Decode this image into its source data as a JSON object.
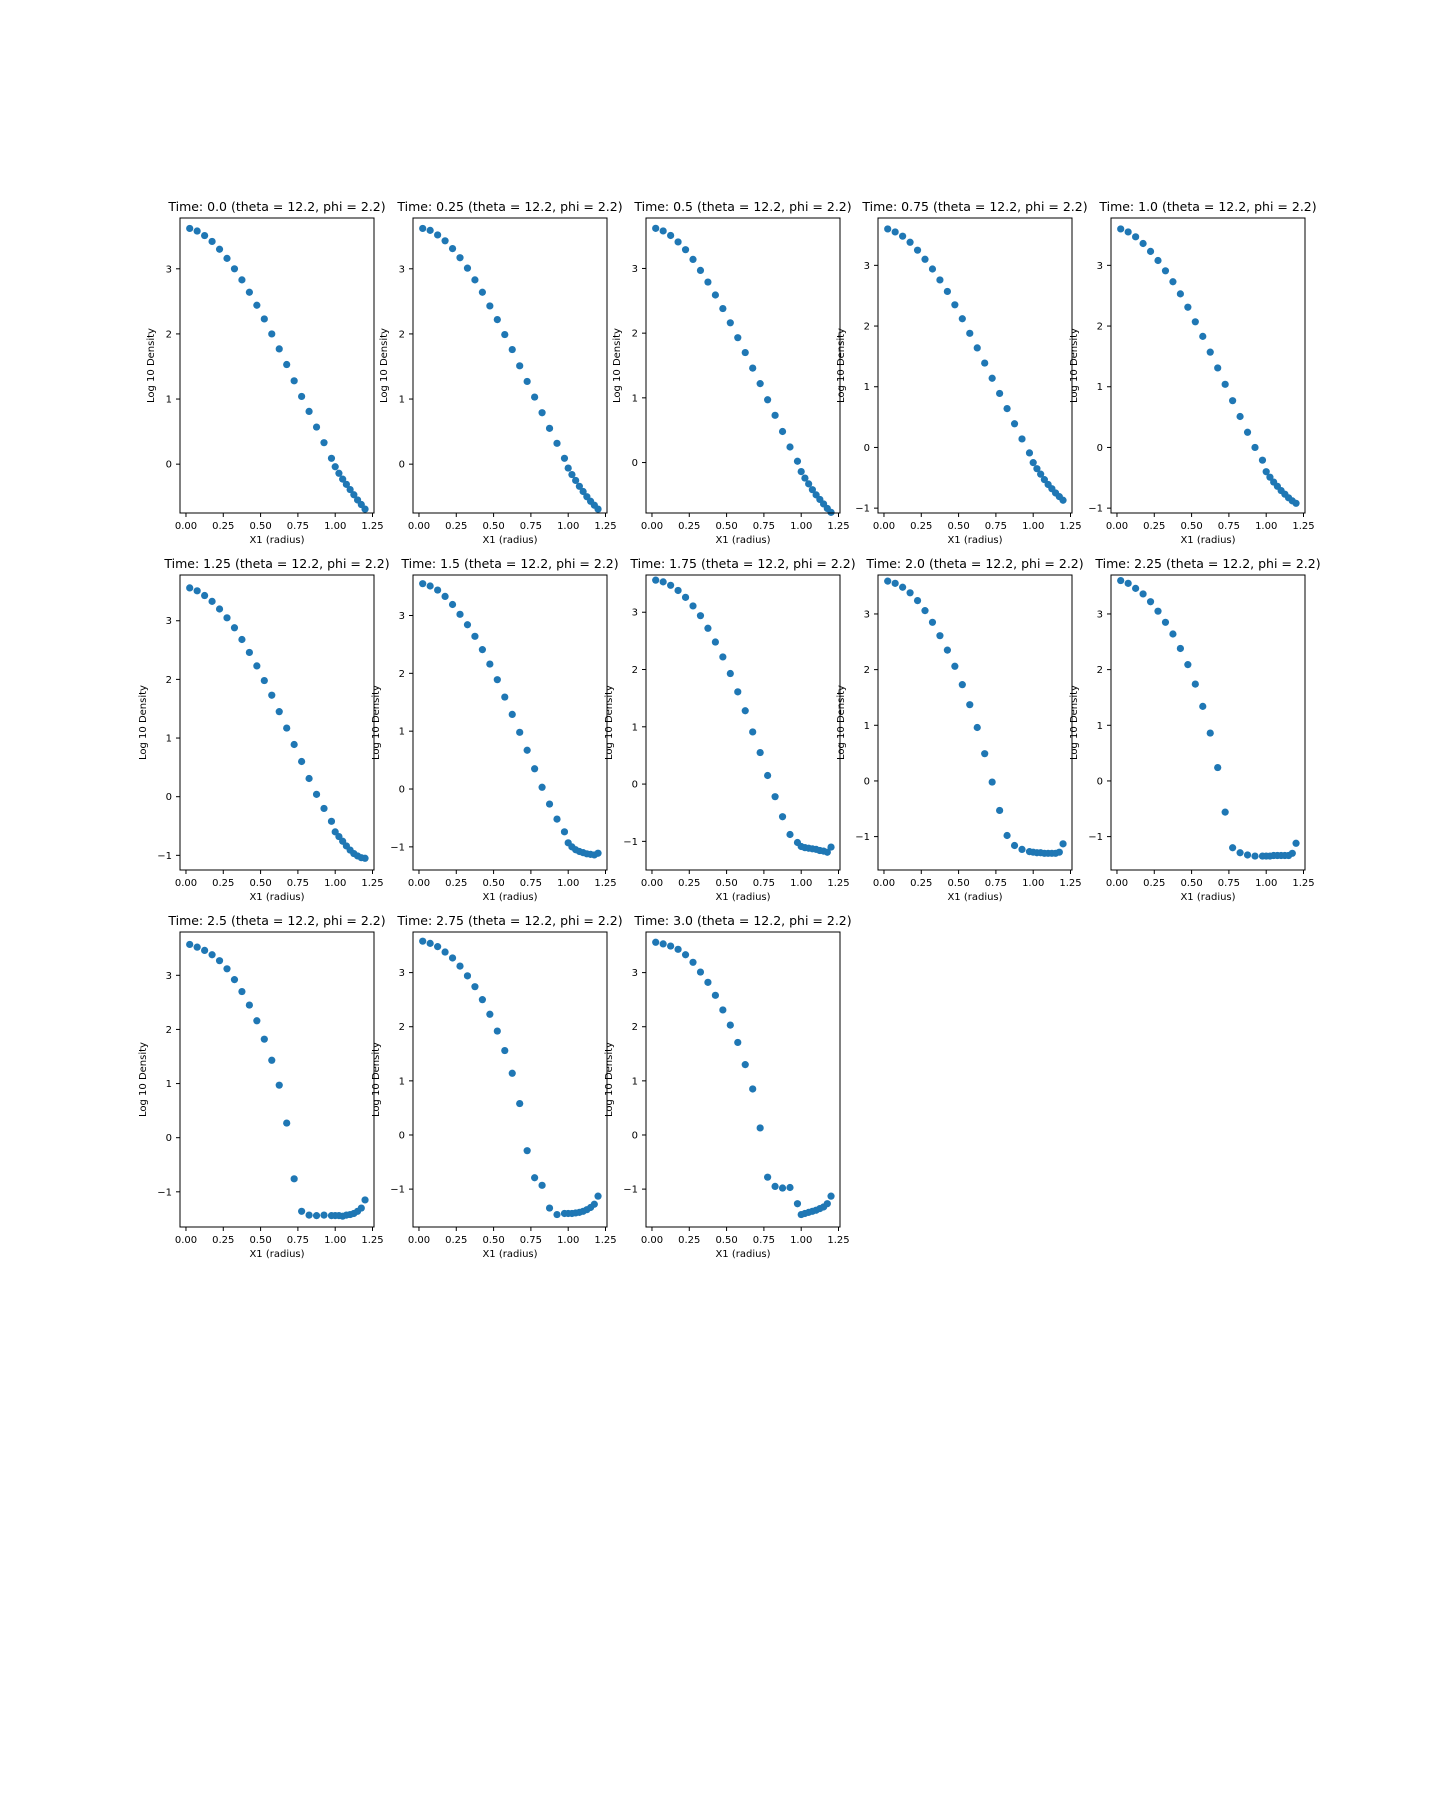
{
  "chart_data": [
    {
      "type": "scatter",
      "title": "Time: 0.0 (theta = 12.2, phi = 2.2)",
      "xlabel": "X1 (radius)",
      "ylabel": "Log 10 Density",
      "xlim": [
        -0.04,
        1.26
      ],
      "ylim": [
        -0.75,
        3.78
      ],
      "xticks": [
        "0.00",
        "0.25",
        "0.50",
        "0.75",
        "1.00",
        "1.25"
      ],
      "yticks": [
        "0",
        "1",
        "2",
        "3"
      ],
      "color": "#1f77b4",
      "x": [
        0.025,
        0.075,
        0.125,
        0.175,
        0.225,
        0.275,
        0.325,
        0.375,
        0.425,
        0.475,
        0.525,
        0.575,
        0.625,
        0.675,
        0.725,
        0.775,
        0.825,
        0.875,
        0.925,
        0.975,
        1.0,
        1.025,
        1.05,
        1.075,
        1.1,
        1.125,
        1.15,
        1.175,
        1.2
      ],
      "y": [
        3.62,
        3.58,
        3.51,
        3.42,
        3.3,
        3.16,
        3.0,
        2.83,
        2.64,
        2.44,
        2.23,
        2.0,
        1.77,
        1.53,
        1.28,
        1.04,
        0.81,
        0.57,
        0.33,
        0.09,
        -0.04,
        -0.14,
        -0.23,
        -0.31,
        -0.39,
        -0.47,
        -0.55,
        -0.62,
        -0.69
      ]
    },
    {
      "type": "scatter",
      "title": "Time: 0.25 (theta = 12.2, phi = 2.2)",
      "xlabel": "X1 (radius)",
      "ylabel": "Log 10 Density",
      "xlim": [
        -0.04,
        1.26
      ],
      "ylim": [
        -0.75,
        3.78
      ],
      "xticks": [
        "0.00",
        "0.25",
        "0.50",
        "0.75",
        "1.00",
        "1.25"
      ],
      "yticks": [
        "0",
        "1",
        "2",
        "3"
      ],
      "color": "#1f77b4",
      "x": [
        0.025,
        0.075,
        0.125,
        0.175,
        0.225,
        0.275,
        0.325,
        0.375,
        0.425,
        0.475,
        0.525,
        0.575,
        0.625,
        0.675,
        0.725,
        0.775,
        0.825,
        0.875,
        0.925,
        0.975,
        1.0,
        1.025,
        1.05,
        1.075,
        1.1,
        1.125,
        1.15,
        1.175,
        1.2
      ],
      "y": [
        3.62,
        3.59,
        3.52,
        3.43,
        3.31,
        3.17,
        3.01,
        2.83,
        2.64,
        2.43,
        2.22,
        1.99,
        1.76,
        1.51,
        1.27,
        1.03,
        0.79,
        0.55,
        0.32,
        0.09,
        -0.06,
        -0.16,
        -0.25,
        -0.34,
        -0.42,
        -0.5,
        -0.57,
        -0.63,
        -0.69
      ]
    },
    {
      "type": "scatter",
      "title": "Time: 0.5 (theta = 12.2, phi = 2.2)",
      "xlabel": "X1 (radius)",
      "ylabel": "Log 10 Density",
      "xlim": [
        -0.04,
        1.26
      ],
      "ylim": [
        -0.78,
        3.78
      ],
      "xticks": [
        "0.00",
        "0.25",
        "0.50",
        "0.75",
        "1.00",
        "1.25"
      ],
      "yticks": [
        "0",
        "1",
        "2",
        "3"
      ],
      "color": "#1f77b4",
      "x": [
        0.025,
        0.075,
        0.125,
        0.175,
        0.225,
        0.275,
        0.325,
        0.375,
        0.425,
        0.475,
        0.525,
        0.575,
        0.625,
        0.675,
        0.725,
        0.775,
        0.825,
        0.875,
        0.925,
        0.975,
        1.0,
        1.025,
        1.05,
        1.075,
        1.1,
        1.125,
        1.15,
        1.175,
        1.2
      ],
      "y": [
        3.62,
        3.58,
        3.51,
        3.41,
        3.29,
        3.14,
        2.97,
        2.79,
        2.59,
        2.38,
        2.16,
        1.93,
        1.7,
        1.46,
        1.22,
        0.97,
        0.73,
        0.48,
        0.24,
        0.02,
        -0.14,
        -0.24,
        -0.33,
        -0.42,
        -0.5,
        -0.57,
        -0.64,
        -0.71,
        -0.77
      ]
    },
    {
      "type": "scatter",
      "title": "Time: 0.75 (theta = 12.2, phi = 2.2)",
      "xlabel": "X1 (radius)",
      "ylabel": "Log 10 Density",
      "xlim": [
        -0.04,
        1.26
      ],
      "ylim": [
        -1.08,
        3.78
      ],
      "xticks": [
        "0.00",
        "0.25",
        "0.50",
        "0.75",
        "1.00",
        "1.25"
      ],
      "yticks": [
        "−1",
        "0",
        "1",
        "2",
        "3"
      ],
      "color": "#1f77b4",
      "x": [
        0.025,
        0.075,
        0.125,
        0.175,
        0.225,
        0.275,
        0.325,
        0.375,
        0.425,
        0.475,
        0.525,
        0.575,
        0.625,
        0.675,
        0.725,
        0.775,
        0.825,
        0.875,
        0.925,
        0.975,
        1.0,
        1.025,
        1.05,
        1.075,
        1.1,
        1.125,
        1.15,
        1.175,
        1.2
      ],
      "y": [
        3.6,
        3.55,
        3.48,
        3.38,
        3.25,
        3.1,
        2.94,
        2.76,
        2.57,
        2.35,
        2.12,
        1.88,
        1.64,
        1.39,
        1.14,
        0.89,
        0.64,
        0.39,
        0.14,
        -0.09,
        -0.25,
        -0.35,
        -0.44,
        -0.53,
        -0.61,
        -0.68,
        -0.75,
        -0.81,
        -0.87
      ]
    },
    {
      "type": "scatter",
      "title": "Time: 1.0 (theta = 12.2, phi = 2.2)",
      "xlabel": "X1 (radius)",
      "ylabel": "Log 10 Density",
      "xlim": [
        -0.04,
        1.26
      ],
      "ylim": [
        -1.08,
        3.78
      ],
      "xticks": [
        "0.00",
        "0.25",
        "0.50",
        "0.75",
        "1.00",
        "1.25"
      ],
      "yticks": [
        "−1",
        "0",
        "1",
        "2",
        "3"
      ],
      "color": "#1f77b4",
      "x": [
        0.025,
        0.075,
        0.125,
        0.175,
        0.225,
        0.275,
        0.325,
        0.375,
        0.425,
        0.475,
        0.525,
        0.575,
        0.625,
        0.675,
        0.725,
        0.775,
        0.825,
        0.875,
        0.925,
        0.975,
        1.0,
        1.025,
        1.05,
        1.075,
        1.1,
        1.125,
        1.15,
        1.175,
        1.2
      ],
      "y": [
        3.6,
        3.55,
        3.47,
        3.36,
        3.23,
        3.08,
        2.91,
        2.73,
        2.53,
        2.31,
        2.07,
        1.83,
        1.57,
        1.31,
        1.04,
        0.77,
        0.51,
        0.25,
        0.0,
        -0.21,
        -0.4,
        -0.49,
        -0.57,
        -0.64,
        -0.71,
        -0.77,
        -0.83,
        -0.88,
        -0.92
      ]
    },
    {
      "type": "scatter",
      "title": "Time: 1.25 (theta = 12.2, phi = 2.2)",
      "xlabel": "X1 (radius)",
      "ylabel": "Log 10 Density",
      "xlim": [
        -0.04,
        1.26
      ],
      "ylim": [
        -1.25,
        3.78
      ],
      "xticks": [
        "0.00",
        "0.25",
        "0.50",
        "0.75",
        "1.00",
        "1.25"
      ],
      "yticks": [
        "−1",
        "0",
        "1",
        "2",
        "3"
      ],
      "color": "#1f77b4",
      "x": [
        0.025,
        0.075,
        0.125,
        0.175,
        0.225,
        0.275,
        0.325,
        0.375,
        0.425,
        0.475,
        0.525,
        0.575,
        0.625,
        0.675,
        0.725,
        0.775,
        0.825,
        0.875,
        0.925,
        0.975,
        1.0,
        1.025,
        1.05,
        1.075,
        1.1,
        1.125,
        1.15,
        1.175,
        1.2
      ],
      "y": [
        3.56,
        3.51,
        3.43,
        3.33,
        3.2,
        3.05,
        2.88,
        2.68,
        2.46,
        2.23,
        1.98,
        1.73,
        1.45,
        1.17,
        0.89,
        0.6,
        0.31,
        0.04,
        -0.2,
        -0.42,
        -0.6,
        -0.68,
        -0.76,
        -0.84,
        -0.91,
        -0.97,
        -1.01,
        -1.04,
        -1.05
      ]
    },
    {
      "type": "scatter",
      "title": "Time: 1.5 (theta = 12.2, phi = 2.2)",
      "xlabel": "X1 (radius)",
      "ylabel": "Log 10 Density",
      "xlim": [
        -0.04,
        1.26
      ],
      "ylim": [
        -1.4,
        3.7
      ],
      "xticks": [
        "0.00",
        "0.25",
        "0.50",
        "0.75",
        "1.00",
        "1.25"
      ],
      "yticks": [
        "−1",
        "0",
        "1",
        "2",
        "3"
      ],
      "color": "#1f77b4",
      "x": [
        0.025,
        0.075,
        0.125,
        0.175,
        0.225,
        0.275,
        0.325,
        0.375,
        0.425,
        0.475,
        0.525,
        0.575,
        0.625,
        0.675,
        0.725,
        0.775,
        0.825,
        0.875,
        0.925,
        0.975,
        1.0,
        1.025,
        1.05,
        1.075,
        1.1,
        1.125,
        1.15,
        1.175,
        1.2
      ],
      "y": [
        3.55,
        3.51,
        3.44,
        3.33,
        3.19,
        3.02,
        2.84,
        2.64,
        2.41,
        2.16,
        1.89,
        1.59,
        1.29,
        0.98,
        0.67,
        0.35,
        0.03,
        -0.26,
        -0.52,
        -0.74,
        -0.93,
        -1.0,
        -1.05,
        -1.08,
        -1.1,
        -1.12,
        -1.13,
        -1.14,
        -1.11
      ]
    },
    {
      "type": "scatter",
      "title": "Time: 1.75 (theta = 12.2, phi = 2.2)",
      "xlabel": "X1 (radius)",
      "ylabel": "Log 10 Density",
      "xlim": [
        -0.04,
        1.26
      ],
      "ylim": [
        -1.5,
        3.65
      ],
      "xticks": [
        "0.00",
        "0.25",
        "0.50",
        "0.75",
        "1.00",
        "1.25"
      ],
      "yticks": [
        "−1",
        "0",
        "1",
        "2",
        "3"
      ],
      "color": "#1f77b4",
      "x": [
        0.025,
        0.075,
        0.125,
        0.175,
        0.225,
        0.275,
        0.325,
        0.375,
        0.425,
        0.475,
        0.525,
        0.575,
        0.625,
        0.675,
        0.725,
        0.775,
        0.825,
        0.875,
        0.925,
        0.975,
        1.0,
        1.025,
        1.05,
        1.075,
        1.1,
        1.125,
        1.15,
        1.175,
        1.2
      ],
      "y": [
        3.56,
        3.53,
        3.47,
        3.38,
        3.26,
        3.11,
        2.94,
        2.72,
        2.48,
        2.22,
        1.93,
        1.61,
        1.28,
        0.91,
        0.55,
        0.15,
        -0.22,
        -0.57,
        -0.88,
        -1.02,
        -1.09,
        -1.11,
        -1.12,
        -1.13,
        -1.14,
        -1.16,
        -1.17,
        -1.19,
        -1.1
      ]
    },
    {
      "type": "scatter",
      "title": "Time: 2.0 (theta = 12.2, phi = 2.2)",
      "xlabel": "X1 (radius)",
      "ylabel": "Log 10 Density",
      "xlim": [
        -0.04,
        1.26
      ],
      "ylim": [
        -1.6,
        3.7
      ],
      "xticks": [
        "0.00",
        "0.25",
        "0.50",
        "0.75",
        "1.00",
        "1.25"
      ],
      "yticks": [
        "−1",
        "0",
        "1",
        "2",
        "3"
      ],
      "color": "#1f77b4",
      "x": [
        0.025,
        0.075,
        0.125,
        0.175,
        0.225,
        0.275,
        0.325,
        0.375,
        0.425,
        0.475,
        0.525,
        0.575,
        0.625,
        0.675,
        0.725,
        0.775,
        0.825,
        0.875,
        0.925,
        0.975,
        1.0,
        1.025,
        1.05,
        1.075,
        1.1,
        1.125,
        1.15,
        1.175,
        1.2
      ],
      "y": [
        3.59,
        3.55,
        3.48,
        3.38,
        3.24,
        3.06,
        2.85,
        2.61,
        2.35,
        2.06,
        1.73,
        1.37,
        0.96,
        0.49,
        -0.02,
        -0.53,
        -0.98,
        -1.16,
        -1.23,
        -1.27,
        -1.28,
        -1.29,
        -1.29,
        -1.3,
        -1.3,
        -1.3,
        -1.3,
        -1.28,
        -1.13
      ]
    },
    {
      "type": "scatter",
      "title": "Time: 2.25 (theta = 12.2, phi = 2.2)",
      "xlabel": "X1 (radius)",
      "ylabel": "Log 10 Density",
      "xlim": [
        -0.04,
        1.26
      ],
      "ylim": [
        -1.6,
        3.7
      ],
      "xticks": [
        "0.00",
        "0.25",
        "0.50",
        "0.75",
        "1.00",
        "1.25"
      ],
      "yticks": [
        "−1",
        "0",
        "1",
        "2",
        "3"
      ],
      "color": "#1f77b4",
      "x": [
        0.025,
        0.075,
        0.125,
        0.175,
        0.225,
        0.275,
        0.325,
        0.375,
        0.425,
        0.475,
        0.525,
        0.575,
        0.625,
        0.675,
        0.725,
        0.775,
        0.825,
        0.875,
        0.925,
        0.975,
        1.0,
        1.025,
        1.05,
        1.075,
        1.1,
        1.125,
        1.15,
        1.175,
        1.2
      ],
      "y": [
        3.6,
        3.55,
        3.46,
        3.36,
        3.22,
        3.05,
        2.85,
        2.64,
        2.38,
        2.09,
        1.74,
        1.34,
        0.86,
        0.24,
        -0.56,
        -1.2,
        -1.29,
        -1.33,
        -1.35,
        -1.35,
        -1.35,
        -1.35,
        -1.34,
        -1.34,
        -1.34,
        -1.34,
        -1.34,
        -1.3,
        -1.12
      ]
    },
    {
      "type": "scatter",
      "title": "Time: 2.5 (theta = 12.2, phi = 2.2)",
      "xlabel": "X1 (radius)",
      "ylabel": "Log 10 Density",
      "xlim": [
        -0.04,
        1.26
      ],
      "ylim": [
        -1.65,
        3.8
      ],
      "xticks": [
        "0.00",
        "0.25",
        "0.50",
        "0.75",
        "1.00",
        "1.25"
      ],
      "yticks": [
        "−1",
        "0",
        "1",
        "2",
        "3"
      ],
      "color": "#1f77b4",
      "x": [
        0.025,
        0.075,
        0.125,
        0.175,
        0.225,
        0.275,
        0.325,
        0.375,
        0.425,
        0.475,
        0.525,
        0.575,
        0.625,
        0.675,
        0.725,
        0.775,
        0.825,
        0.875,
        0.925,
        0.975,
        1.0,
        1.025,
        1.05,
        1.075,
        1.1,
        1.125,
        1.15,
        1.175,
        1.2
      ],
      "y": [
        3.57,
        3.52,
        3.46,
        3.38,
        3.27,
        3.12,
        2.92,
        2.7,
        2.45,
        2.16,
        1.82,
        1.43,
        0.97,
        0.27,
        -0.76,
        -1.36,
        -1.43,
        -1.44,
        -1.43,
        -1.44,
        -1.44,
        -1.44,
        -1.45,
        -1.43,
        -1.42,
        -1.4,
        -1.36,
        -1.3,
        -1.15
      ]
    },
    {
      "type": "scatter",
      "title": "Time: 2.75 (theta = 12.2, phi = 2.2)",
      "xlabel": "X1 (radius)",
      "ylabel": "Log 10 Density",
      "xlim": [
        -0.04,
        1.26
      ],
      "ylim": [
        -1.7,
        3.75
      ],
      "xticks": [
        "0.00",
        "0.25",
        "0.50",
        "0.75",
        "1.00",
        "1.25"
      ],
      "yticks": [
        "−1",
        "0",
        "1",
        "2",
        "3"
      ],
      "color": "#1f77b4",
      "x": [
        0.025,
        0.075,
        0.125,
        0.175,
        0.225,
        0.275,
        0.325,
        0.375,
        0.425,
        0.475,
        0.525,
        0.575,
        0.625,
        0.675,
        0.725,
        0.775,
        0.825,
        0.875,
        0.925,
        0.975,
        1.0,
        1.025,
        1.05,
        1.075,
        1.1,
        1.125,
        1.15,
        1.175,
        1.2
      ],
      "y": [
        3.58,
        3.54,
        3.48,
        3.38,
        3.27,
        3.12,
        2.94,
        2.74,
        2.5,
        2.23,
        1.92,
        1.56,
        1.14,
        0.58,
        -0.29,
        -0.79,
        -0.93,
        -1.35,
        -1.47,
        -1.45,
        -1.45,
        -1.45,
        -1.44,
        -1.43,
        -1.41,
        -1.38,
        -1.34,
        -1.28,
        -1.13
      ]
    },
    {
      "type": "scatter",
      "title": "Time: 3.0 (theta = 12.2, phi = 2.2)",
      "xlabel": "X1 (radius)",
      "ylabel": "Log 10 Density",
      "xlim": [
        -0.04,
        1.26
      ],
      "ylim": [
        -1.7,
        3.75
      ],
      "xticks": [
        "0.00",
        "0.25",
        "0.50",
        "0.75",
        "1.00",
        "1.25"
      ],
      "yticks": [
        "−1",
        "0",
        "1",
        "2",
        "3"
      ],
      "color": "#1f77b4",
      "x": [
        0.025,
        0.075,
        0.125,
        0.175,
        0.225,
        0.275,
        0.325,
        0.375,
        0.425,
        0.475,
        0.525,
        0.575,
        0.625,
        0.675,
        0.725,
        0.775,
        0.825,
        0.875,
        0.925,
        0.975,
        1.0,
        1.025,
        1.05,
        1.075,
        1.1,
        1.125,
        1.15,
        1.175,
        1.2
      ],
      "y": [
        3.56,
        3.53,
        3.49,
        3.43,
        3.33,
        3.19,
        3.01,
        2.82,
        2.58,
        2.31,
        2.03,
        1.71,
        1.3,
        0.85,
        0.13,
        -0.78,
        -0.95,
        -0.98,
        -0.97,
        -1.27,
        -1.47,
        -1.45,
        -1.43,
        -1.41,
        -1.39,
        -1.36,
        -1.33,
        -1.27,
        -1.13
      ]
    }
  ]
}
